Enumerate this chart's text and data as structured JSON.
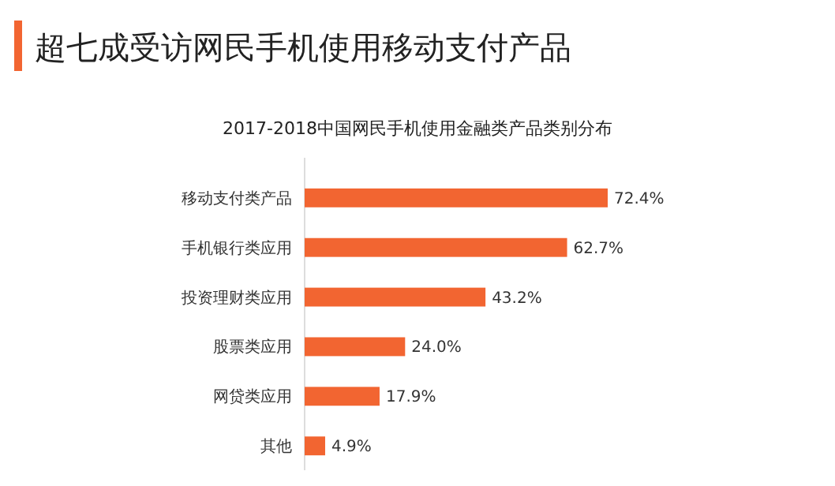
{
  "chart_data": {
    "type": "bar",
    "orientation": "horizontal",
    "title": "超七成受访网民手机使用移动支付产品",
    "subtitle": "2017-2018中国网民手机使用金融类产品类别分布",
    "categories": [
      "移动支付类产品",
      "手机银行类应用",
      "投资理财类应用",
      "股票类应用",
      "网贷类应用",
      "其他"
    ],
    "values": [
      72.4,
      62.7,
      43.2,
      24.0,
      17.9,
      4.9
    ],
    "value_labels": [
      "72.4%",
      "62.7%",
      "43.2%",
      "24.0%",
      "17.9%",
      "4.9%"
    ],
    "color": "#f26531"
  }
}
